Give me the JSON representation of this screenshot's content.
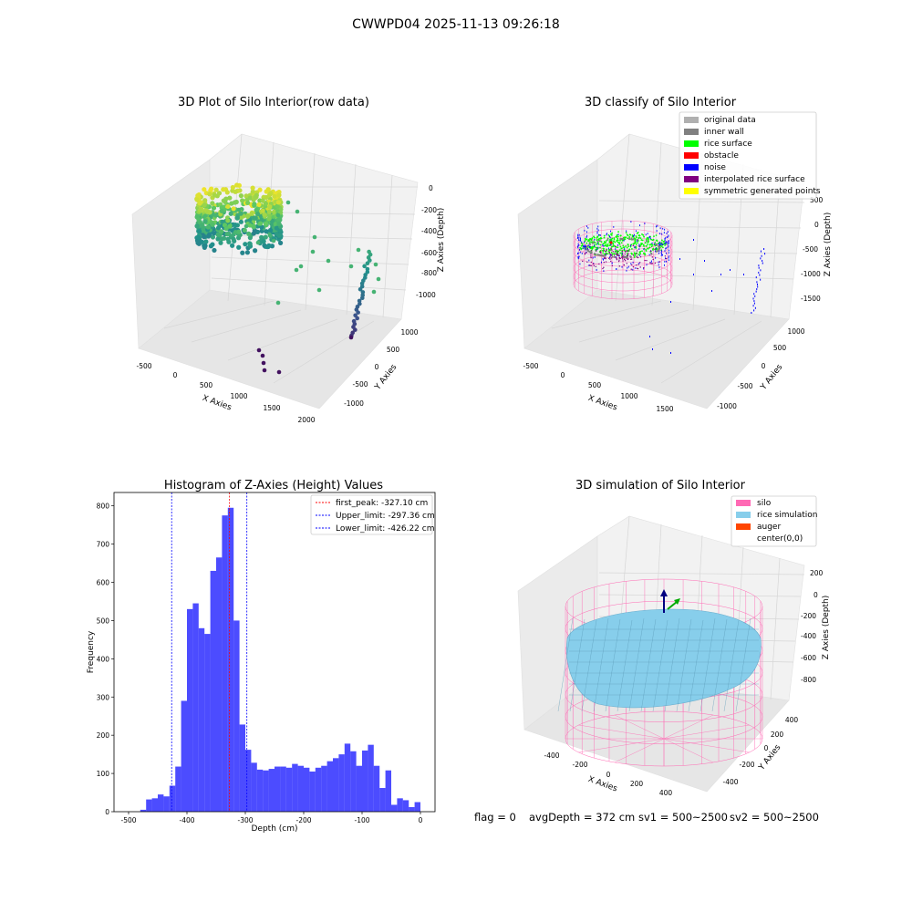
{
  "figure": {
    "suptitle": "CWWPD04 2025-11-13 09:26:18",
    "status": {
      "flag": "flag = 0",
      "avg_depth": "avgDepth = 372 cm",
      "sv1": "sv1 = 500~2500",
      "sv2": "sv2 = 500~2500"
    }
  },
  "chart_data": [
    {
      "type": "scatter3d",
      "title": "3D Plot of Silo Interior(row data)",
      "xlabel": "X Axies",
      "ylabel": "Y Axies",
      "zlabel": "Z Axies (Depth)",
      "xticks": [
        "-500",
        "0",
        "500",
        "1000",
        "1500",
        "2000"
      ],
      "yticks": [
        "-1000",
        "-500",
        "0",
        "500",
        "1000"
      ],
      "zticks": [
        "0",
        "-200",
        "-400",
        "-600",
        "-800",
        "-1000"
      ],
      "colormap": "viridis",
      "outliers": [
        {
          "x": 1300,
          "y": -900,
          "z": -1150
        },
        {
          "x": 1400,
          "y": -850,
          "z": -1100
        },
        {
          "x": 1350,
          "y": -950,
          "z": -1200
        },
        {
          "x": 1500,
          "y": -800,
          "z": -1250
        },
        {
          "x": 1600,
          "y": -700,
          "z": -1180
        },
        {
          "x": 900,
          "y": 700,
          "z": -600
        },
        {
          "x": 1100,
          "y": 600,
          "z": -500
        },
        {
          "x": 1200,
          "y": 500,
          "z": -350
        },
        {
          "x": 800,
          "y": 900,
          "z": -420
        },
        {
          "x": 1700,
          "y": 800,
          "z": -900
        }
      ]
    },
    {
      "type": "scatter3d",
      "title": "3D classify of Silo Interior",
      "xlabel": "X Axies",
      "ylabel": "Y Axies",
      "zlabel": "Z Axies (Depth)",
      "xticks": [
        "-500",
        "0",
        "500",
        "1000",
        "1500"
      ],
      "yticks": [
        "-1000",
        "-500",
        "0",
        "500",
        "1000"
      ],
      "zticks": [
        "500",
        "0",
        "-500",
        "-1000",
        "-1500"
      ],
      "legend": [
        {
          "label": "original data",
          "color": "#b0b0b0"
        },
        {
          "label": "inner wall",
          "color": "#808080"
        },
        {
          "label": "rice surface",
          "color": "#00ff00"
        },
        {
          "label": "obstacle",
          "color": "#ff0000"
        },
        {
          "label": "noise",
          "color": "#0000ff"
        },
        {
          "label": "interpolated rice surface",
          "color": "#800080"
        },
        {
          "label": "symmetric generated points",
          "color": "#ffff00"
        }
      ]
    },
    {
      "type": "bar",
      "title": "Histogram of Z-Axies (Height) Values",
      "xlabel": "Depth (cm)",
      "ylabel": "Frequency",
      "xlim": [
        -525,
        25
      ],
      "ylim": [
        0,
        835
      ],
      "xticks": [
        -500,
        -400,
        -300,
        -200,
        -100,
        0
      ],
      "yticks": [
        0,
        100,
        200,
        300,
        400,
        500,
        600,
        700,
        800
      ],
      "bin_width": 10,
      "bin_starts": [
        -480,
        -470,
        -460,
        -450,
        -440,
        -430,
        -420,
        -410,
        -400,
        -390,
        -380,
        -370,
        -360,
        -350,
        -340,
        -330,
        -320,
        -310,
        -300,
        -290,
        -280,
        -270,
        -260,
        -250,
        -240,
        -230,
        -220,
        -210,
        -200,
        -190,
        -180,
        -170,
        -160,
        -150,
        -140,
        -130,
        -120,
        -110,
        -100,
        -90,
        -80,
        -70,
        -60,
        -50,
        -40,
        -30,
        -20,
        -10
      ],
      "values": [
        5,
        32,
        35,
        45,
        40,
        68,
        118,
        290,
        530,
        545,
        480,
        465,
        630,
        665,
        775,
        795,
        500,
        228,
        162,
        128,
        110,
        108,
        112,
        118,
        118,
        115,
        125,
        120,
        115,
        105,
        115,
        120,
        132,
        140,
        150,
        178,
        158,
        120,
        160,
        175,
        120,
        62,
        108,
        18,
        35,
        30,
        12,
        25
      ],
      "bar_color": "#0000ff",
      "lines": [
        {
          "label": "first_peak: -327.10 cm",
          "value": -327.1,
          "color": "#ff0000"
        },
        {
          "label": "Upper_limit: -297.36 cm",
          "value": -297.36,
          "color": "#0000ff"
        },
        {
          "label": "Lower_limit: -426.22 cm",
          "value": -426.22,
          "color": "#0000ff"
        }
      ]
    },
    {
      "type": "surface3d",
      "title": "3D simulation of Silo Interior",
      "xlabel": "X Axies",
      "ylabel": "Y Axies",
      "zlabel": "Z Axies (Depth)",
      "xticks": [
        "-400",
        "-200",
        "0",
        "200",
        "400"
      ],
      "yticks": [
        "400",
        "200",
        "0",
        "-200",
        "-400"
      ],
      "zticks": [
        "200",
        "0",
        "-200",
        "-400",
        "-600",
        "-800"
      ],
      "legend": [
        {
          "label": "silo",
          "color": "#ff69b4"
        },
        {
          "label": "rice simulation",
          "color": "#87ceeb"
        },
        {
          "label": "auger",
          "color": "#ff4500"
        },
        {
          "label": "center(0,0)",
          "color": "#ffffff"
        }
      ]
    }
  ]
}
